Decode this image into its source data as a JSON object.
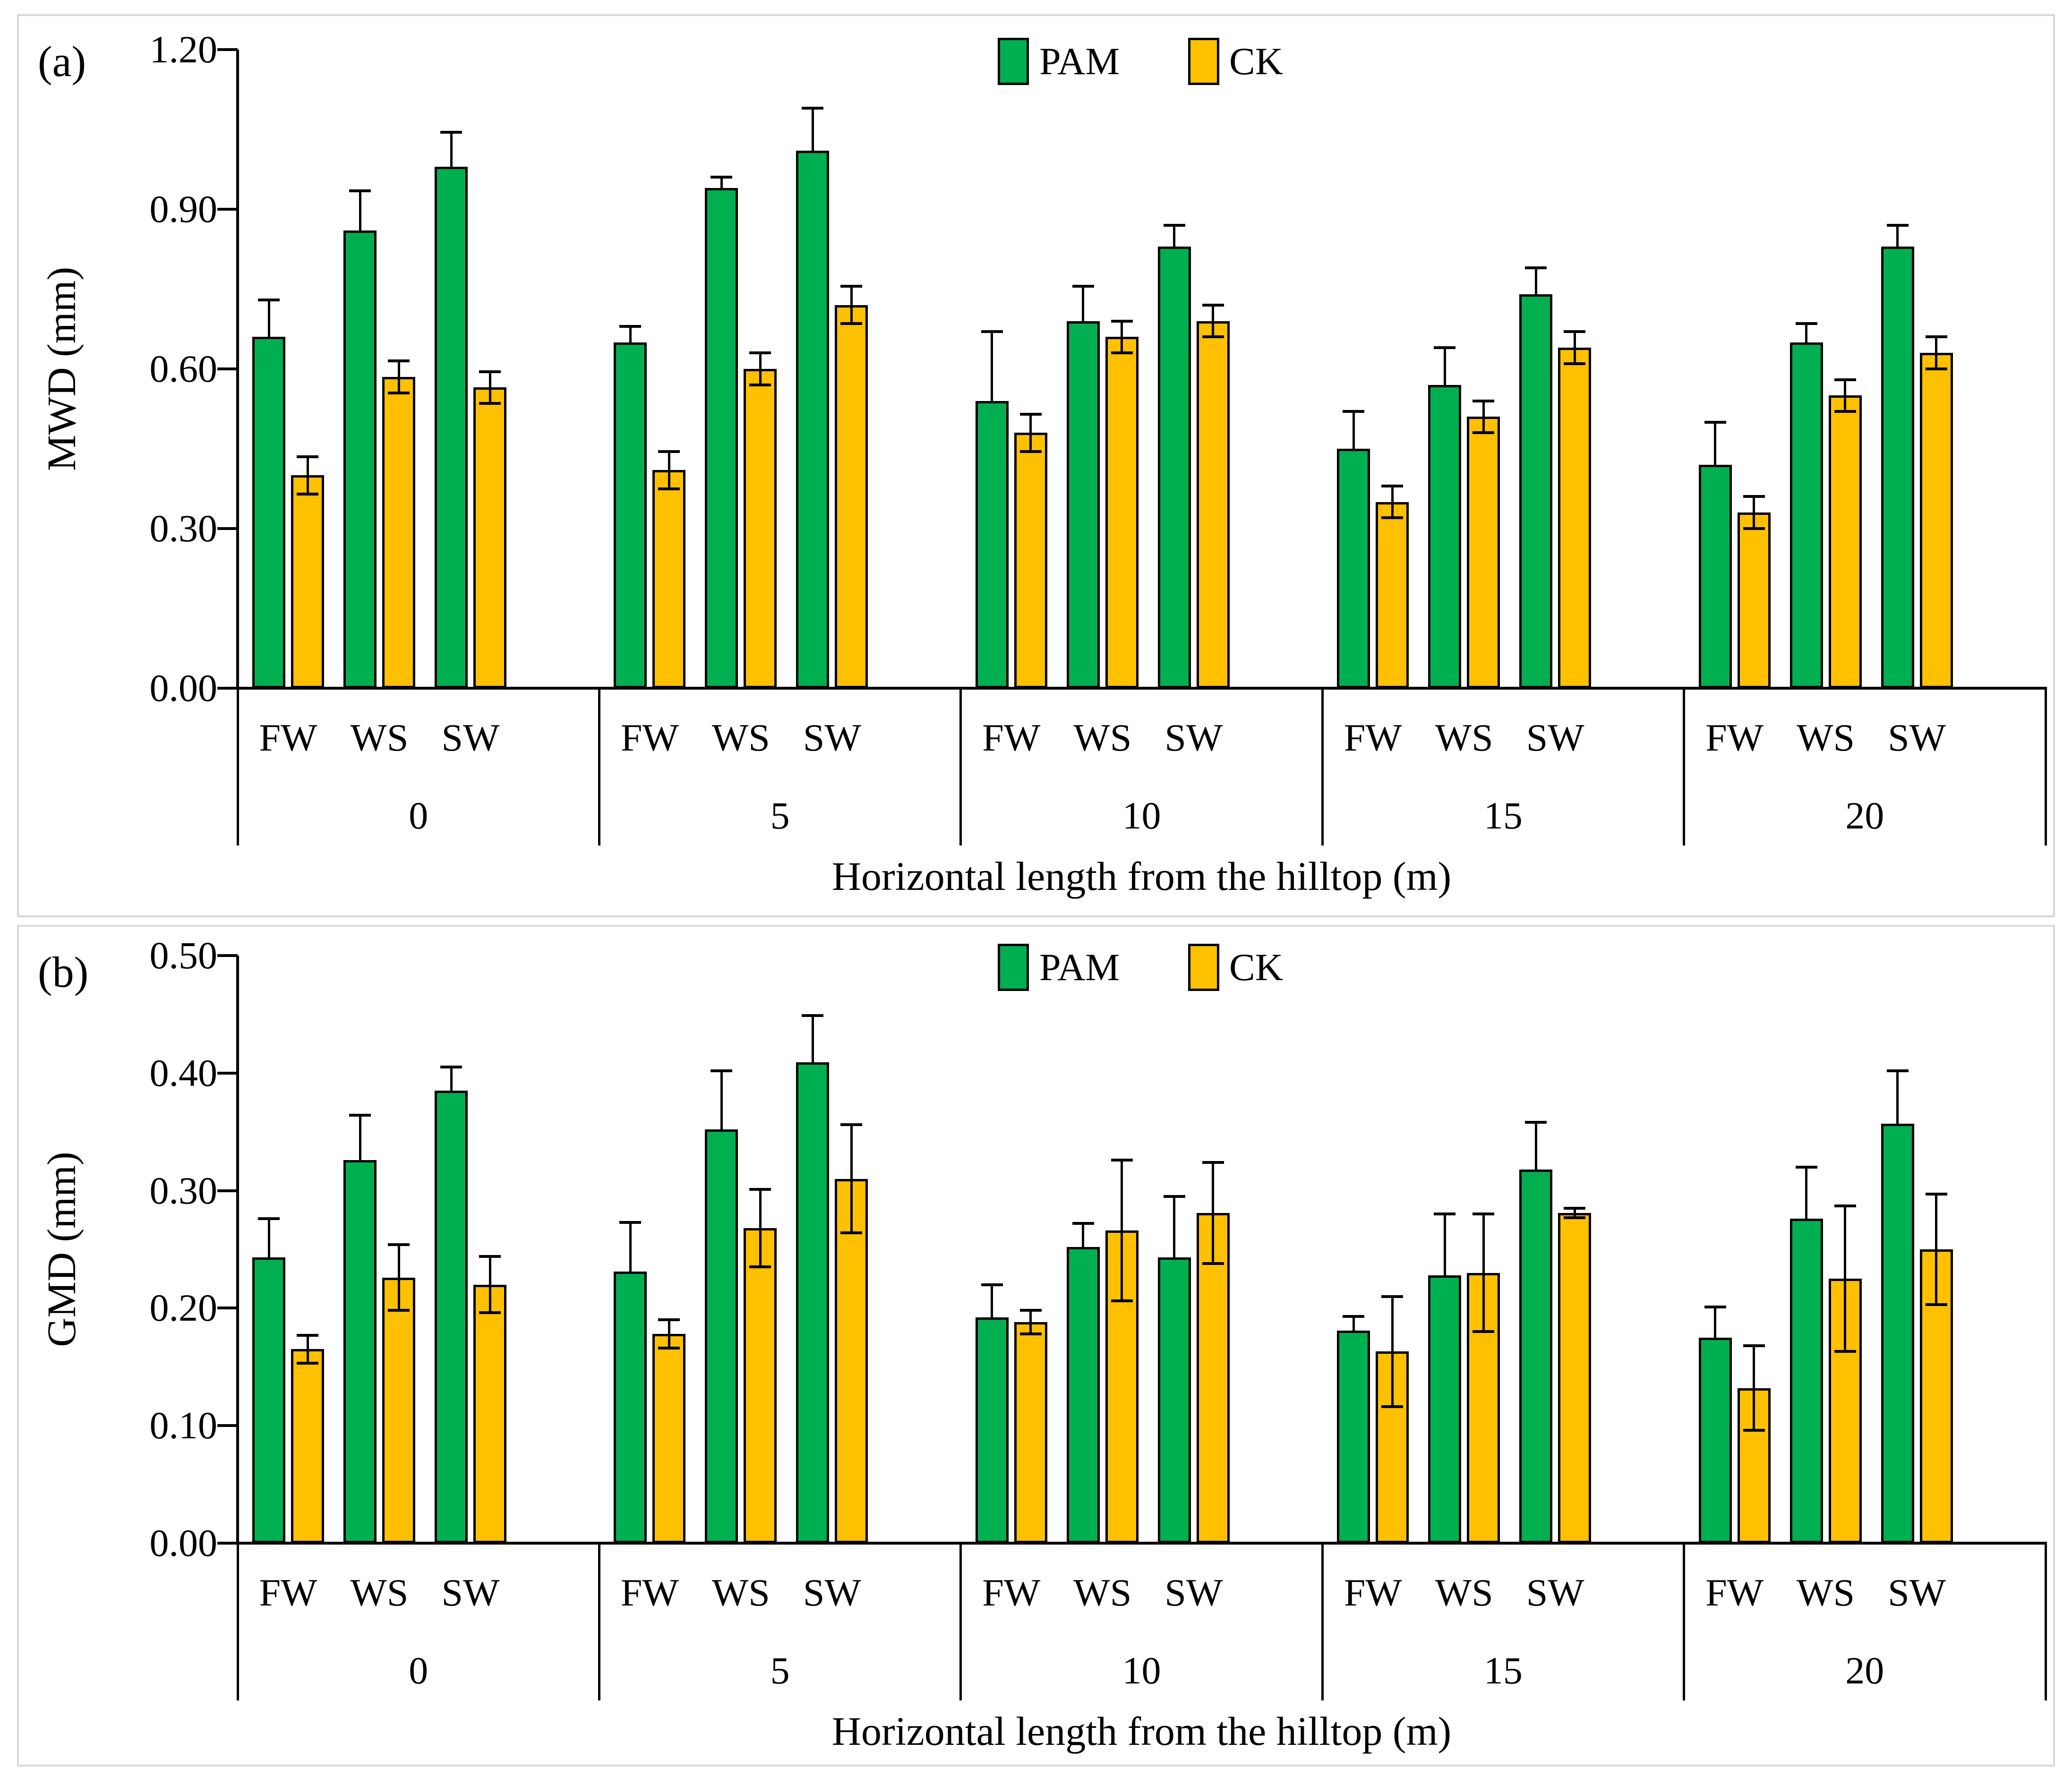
{
  "figure": {
    "background": "#ffffff",
    "panel_border_color": "#d9d9d9",
    "text_color": "#000000"
  },
  "chart_data": [
    {
      "type": "bar",
      "panel_label": "(a)",
      "ylabel": "MWD (mm)",
      "xlabel": "Horizontal length from the hilltop (m)",
      "ylim": [
        0.0,
        1.2
      ],
      "ytick_labels": [
        "0.00",
        "0.30",
        "0.60",
        "0.90",
        "1.20"
      ],
      "groups": [
        "0",
        "5",
        "10",
        "15",
        "20"
      ],
      "subgroups": [
        "FW",
        "WS",
        "SW"
      ],
      "grid": false,
      "legend_position": "top-center",
      "legend": [
        "PAM",
        "CK"
      ],
      "series": [
        {
          "name": "PAM",
          "color": "#00B050",
          "error_style": "plus",
          "values": [
            [
              0.66,
              0.86,
              0.98
            ],
            [
              0.65,
              0.94,
              1.01
            ],
            [
              0.54,
              0.69,
              0.83
            ],
            [
              0.45,
              0.57,
              0.74
            ],
            [
              0.42,
              0.65,
              0.83
            ]
          ],
          "errors": [
            [
              0.07,
              0.075,
              0.065
            ],
            [
              0.03,
              0.02,
              0.08
            ],
            [
              0.13,
              0.065,
              0.04
            ],
            [
              0.07,
              0.07,
              0.05
            ],
            [
              0.08,
              0.035,
              0.04
            ]
          ]
        },
        {
          "name": "CK",
          "color": "#FFC000",
          "error_style": "plus-minus",
          "values": [
            [
              0.4,
              0.585,
              0.565
            ],
            [
              0.41,
              0.6,
              0.72
            ],
            [
              0.48,
              0.66,
              0.69
            ],
            [
              0.35,
              0.51,
              0.64
            ],
            [
              0.33,
              0.55,
              0.63
            ]
          ],
          "errors": [
            [
              0.035,
              0.03,
              0.03
            ],
            [
              0.035,
              0.03,
              0.035
            ],
            [
              0.035,
              0.03,
              0.03
            ],
            [
              0.03,
              0.03,
              0.03
            ],
            [
              0.03,
              0.03,
              0.03
            ]
          ]
        }
      ]
    },
    {
      "type": "bar",
      "panel_label": "(b)",
      "ylabel": "GMD (mm)",
      "xlabel": "Horizontal length from the hilltop (m)",
      "ylim": [
        0.0,
        0.5
      ],
      "ytick_labels": [
        "0.00",
        "0.10",
        "0.20",
        "0.30",
        "0.40",
        "0.50"
      ],
      "groups": [
        "0",
        "5",
        "10",
        "15",
        "20"
      ],
      "subgroups": [
        "FW",
        "WS",
        "SW"
      ],
      "grid": false,
      "legend_position": "top-center",
      "legend": [
        "PAM",
        "CK"
      ],
      "series": [
        {
          "name": "PAM",
          "color": "#00B050",
          "error_style": "plus",
          "values": [
            [
              0.243,
              0.326,
              0.385
            ],
            [
              0.231,
              0.352,
              0.409
            ],
            [
              0.192,
              0.252,
              0.243
            ],
            [
              0.181,
              0.228,
              0.318
            ],
            [
              0.175,
              0.276,
              0.357
            ]
          ],
          "errors": [
            [
              0.033,
              0.038,
              0.02
            ],
            [
              0.042,
              0.05,
              0.04
            ],
            [
              0.028,
              0.02,
              0.052
            ],
            [
              0.012,
              0.052,
              0.04
            ],
            [
              0.026,
              0.044,
              0.045
            ]
          ]
        },
        {
          "name": "CK",
          "color": "#FFC000",
          "error_style": "plus-minus",
          "values": [
            [
              0.165,
              0.226,
              0.22
            ],
            [
              0.178,
              0.268,
              0.31
            ],
            [
              0.188,
              0.266,
              0.281
            ],
            [
              0.163,
              0.23,
              0.281
            ],
            [
              0.132,
              0.225,
              0.25
            ]
          ],
          "errors": [
            [
              0.012,
              0.028,
              0.024
            ],
            [
              0.012,
              0.033,
              0.046
            ],
            [
              0.01,
              0.06,
              0.043
            ],
            [
              0.047,
              0.05,
              0.004
            ],
            [
              0.036,
              0.062,
              0.047
            ]
          ]
        }
      ]
    }
  ]
}
